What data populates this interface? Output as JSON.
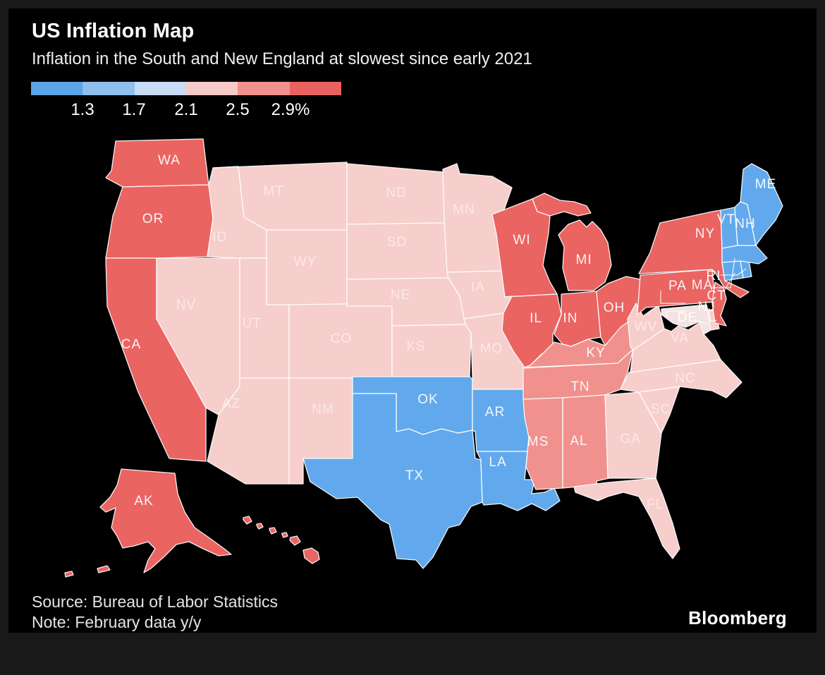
{
  "header": {
    "title": "US Inflation Map",
    "subtitle": "Inflation in the South and New England at slowest since early 2021"
  },
  "footer": {
    "source": "Source: Bureau of Labor Statistics",
    "note": "Note: February data y/y",
    "brand": "Bloomberg"
  },
  "chart_data": {
    "type": "choropleth_map",
    "region": "United States",
    "metric": "CPI inflation, percent year-over-year, February data",
    "scale_tick_labels": [
      "1.3",
      "1.7",
      "2.1",
      "2.5",
      "2.9%"
    ],
    "scale_colors": [
      "#5ca4e8",
      "#8fbeef",
      "#c9dcf6",
      "#f5cac8",
      "#f0918e",
      "#ea6260"
    ],
    "level_colors": {
      "low": "#61a9ec",
      "neutral": "#f3e3e2",
      "mid": "#f6cecb",
      "mid_high": "#f0918d",
      "high": "#ea6462"
    },
    "level_legend_position": {
      "low": "lowest bucket (~1.3-1.7, slowest inflation)",
      "neutral": "middle bucket (~2.1)",
      "mid": "light-red bucket (~2.3-2.5)",
      "mid_high": "medium-red bucket (~2.5-2.8)",
      "high": "highest bucket (~2.9+)"
    },
    "states": [
      {
        "code": "WA",
        "level": "high"
      },
      {
        "code": "OR",
        "level": "high"
      },
      {
        "code": "CA",
        "level": "high"
      },
      {
        "code": "NV",
        "level": "mid"
      },
      {
        "code": "ID",
        "level": "mid"
      },
      {
        "code": "MT",
        "level": "mid"
      },
      {
        "code": "WY",
        "level": "mid"
      },
      {
        "code": "UT",
        "level": "mid"
      },
      {
        "code": "CO",
        "level": "mid"
      },
      {
        "code": "AZ",
        "level": "mid"
      },
      {
        "code": "NM",
        "level": "mid"
      },
      {
        "code": "ND",
        "level": "mid"
      },
      {
        "code": "SD",
        "level": "mid"
      },
      {
        "code": "NE",
        "level": "mid"
      },
      {
        "code": "KS",
        "level": "mid"
      },
      {
        "code": "OK",
        "level": "low"
      },
      {
        "code": "TX",
        "level": "low"
      },
      {
        "code": "MN",
        "level": "mid"
      },
      {
        "code": "IA",
        "level": "mid"
      },
      {
        "code": "MO",
        "level": "mid"
      },
      {
        "code": "AR",
        "level": "low"
      },
      {
        "code": "LA",
        "level": "low"
      },
      {
        "code": "WI",
        "level": "high"
      },
      {
        "code": "MI",
        "level": "high"
      },
      {
        "code": "IL",
        "level": "high"
      },
      {
        "code": "IN",
        "level": "high"
      },
      {
        "code": "OH",
        "level": "high"
      },
      {
        "code": "KY",
        "level": "mid_high"
      },
      {
        "code": "TN",
        "level": "mid_high"
      },
      {
        "code": "MS",
        "level": "mid_high"
      },
      {
        "code": "AL",
        "level": "mid_high"
      },
      {
        "code": "GA",
        "level": "mid"
      },
      {
        "code": "FL",
        "level": "mid"
      },
      {
        "code": "SC",
        "level": "mid"
      },
      {
        "code": "NC",
        "level": "mid"
      },
      {
        "code": "VA",
        "level": "mid"
      },
      {
        "code": "WV",
        "level": "mid"
      },
      {
        "code": "MD",
        "level": "neutral",
        "label_hidden": true
      },
      {
        "code": "DE",
        "level": "mid",
        "callout": true
      },
      {
        "code": "PA",
        "level": "high"
      },
      {
        "code": "NJ",
        "level": "high",
        "callout": true
      },
      {
        "code": "NY",
        "level": "high"
      },
      {
        "code": "CT",
        "level": "low",
        "callout": true
      },
      {
        "code": "RI",
        "level": "low",
        "callout": true
      },
      {
        "code": "MA",
        "level": "low",
        "callout": true
      },
      {
        "code": "VT",
        "level": "low"
      },
      {
        "code": "NH",
        "level": "low"
      },
      {
        "code": "ME",
        "level": "low"
      },
      {
        "code": "AK",
        "level": "high"
      },
      {
        "code": "HI",
        "level": "high",
        "label_hidden": true
      }
    ]
  }
}
